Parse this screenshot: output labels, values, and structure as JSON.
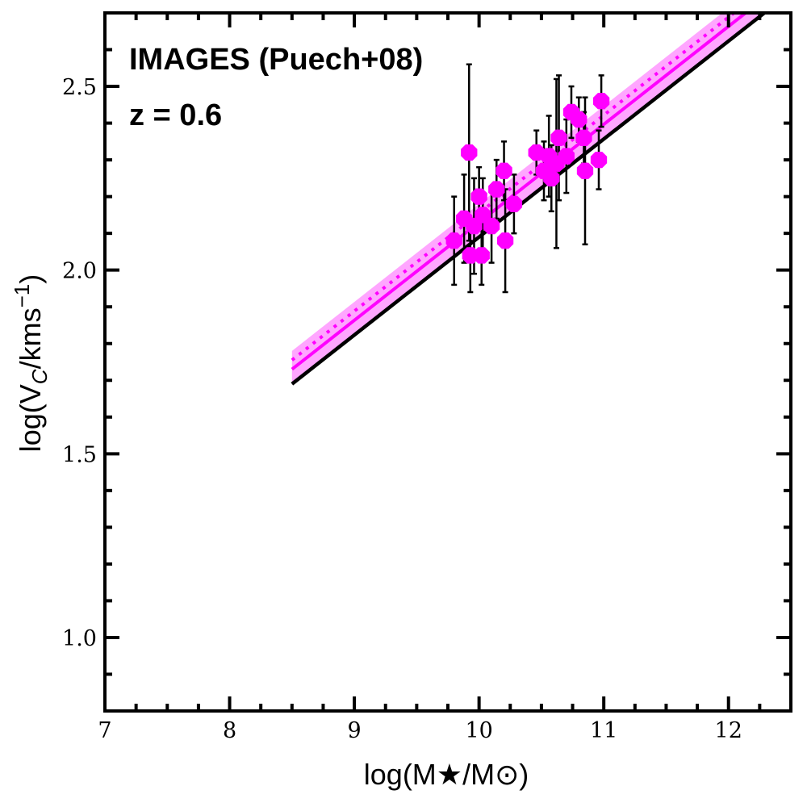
{
  "chart_data": {
    "type": "scatter",
    "annotations": [
      "IMAGES (Puech+08)",
      "z = 0.6"
    ],
    "xlabel": "log(M★/M⊙)",
    "ylabel": "log(V",
    "ylabel_sub": "C",
    "ylabel_tail": "/kms",
    "ylabel_sup": "−1",
    "ylabel_close": ")",
    "xlim": [
      7,
      12.5
    ],
    "ylim": [
      0.8,
      2.7
    ],
    "xticks": [
      7,
      8,
      9,
      10,
      11,
      12
    ],
    "xtick_labels": [
      "7",
      "8",
      "9",
      "10",
      "11",
      "12"
    ],
    "yticks": [
      1.0,
      1.5,
      2.0,
      2.5
    ],
    "ytick_labels": [
      "1.0",
      "1.5",
      "2.0",
      "2.5"
    ],
    "grid": false,
    "colors": {
      "points": "#ff00ff",
      "fit": "#ff00ff",
      "band": "#ff00ff",
      "reference": "#000000",
      "errorbars": "#000000"
    },
    "points": [
      {
        "x": 9.8,
        "y": 2.08,
        "yerr": 0.12
      },
      {
        "x": 9.88,
        "y": 2.14,
        "yerr": 0.12
      },
      {
        "x": 9.92,
        "y": 2.32,
        "yerr": 0.24
      },
      {
        "x": 9.93,
        "y": 2.04,
        "yerr": 0.1
      },
      {
        "x": 9.96,
        "y": 2.12,
        "yerr": 0.13
      },
      {
        "x": 10.0,
        "y": 2.2,
        "yerr": 0.08
      },
      {
        "x": 10.02,
        "y": 2.04,
        "yerr": 0.08
      },
      {
        "x": 10.03,
        "y": 2.15,
        "yerr": 0.1
      },
      {
        "x": 10.1,
        "y": 2.12,
        "yerr": 0.1
      },
      {
        "x": 10.14,
        "y": 2.22,
        "yerr": 0.08
      },
      {
        "x": 10.2,
        "y": 2.27,
        "yerr": 0.08
      },
      {
        "x": 10.21,
        "y": 2.08,
        "yerr": 0.14
      },
      {
        "x": 10.28,
        "y": 2.18,
        "yerr": 0.08
      },
      {
        "x": 10.46,
        "y": 2.32,
        "yerr": 0.06
      },
      {
        "x": 10.52,
        "y": 2.27,
        "yerr": 0.08
      },
      {
        "x": 10.56,
        "y": 2.31,
        "yerr": 0.11
      },
      {
        "x": 10.58,
        "y": 2.25,
        "yerr": 0.09
      },
      {
        "x": 10.62,
        "y": 2.29,
        "yerr": 0.23
      },
      {
        "x": 10.64,
        "y": 2.36,
        "yerr": 0.17
      },
      {
        "x": 10.7,
        "y": 2.31,
        "yerr": 0.1
      },
      {
        "x": 10.74,
        "y": 2.43,
        "yerr": 0.07
      },
      {
        "x": 10.8,
        "y": 2.41,
        "yerr": 0.06
      },
      {
        "x": 10.84,
        "y": 2.36,
        "yerr": 0.07
      },
      {
        "x": 10.85,
        "y": 2.27,
        "yerr": 0.2
      },
      {
        "x": 10.96,
        "y": 2.3,
        "yerr": 0.08
      },
      {
        "x": 10.98,
        "y": 2.46,
        "yerr": 0.07
      }
    ],
    "fit_line": {
      "x": [
        8.5,
        12.4
      ],
      "y": [
        1.73,
        2.77
      ]
    },
    "fit_band": {
      "x": [
        8.5,
        12.4
      ],
      "y_upper": [
        1.78,
        2.82
      ],
      "y_lower": [
        1.69,
        2.73
      ]
    },
    "fit_dotted": {
      "x": [
        8.5,
        12.4
      ],
      "y": [
        1.755,
        2.795
      ]
    },
    "reference_line": {
      "x": [
        8.5,
        12.4
      ],
      "y": [
        1.69,
        2.73
      ]
    }
  }
}
